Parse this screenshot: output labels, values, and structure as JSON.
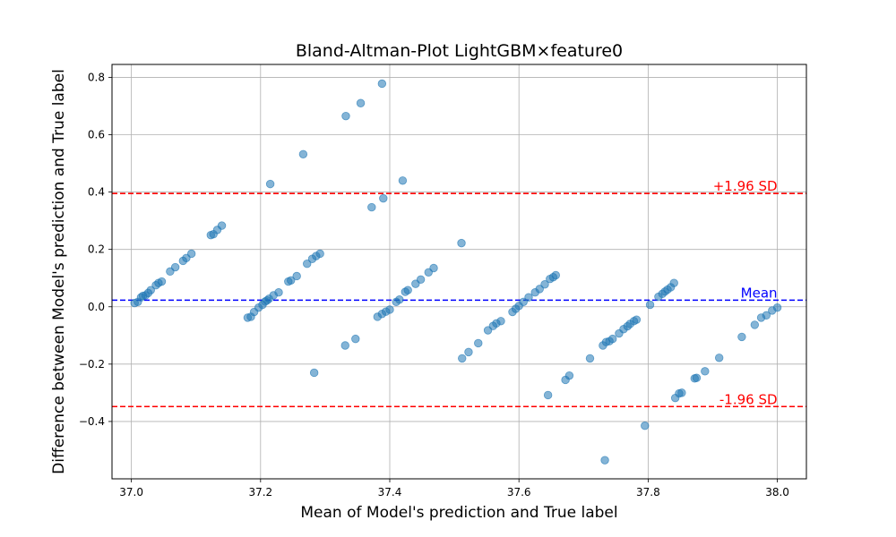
{
  "chart_data": {
    "type": "scatter",
    "title": "Bland-Altman-Plot LightGBM×feature0",
    "xlabel": "Mean of Model's prediction and True label",
    "ylabel": "Difference between Model's prediction and True label",
    "xlim": [
      36.97,
      38.045
    ],
    "ylim": [
      -0.6,
      0.845
    ],
    "xticks": [
      37.0,
      37.2,
      37.4,
      37.6,
      37.8,
      38.0
    ],
    "xtick_labels": [
      "37.0",
      "37.2",
      "37.4",
      "37.6",
      "37.8",
      "38.0"
    ],
    "yticks": [
      -0.4,
      -0.2,
      0.0,
      0.2,
      0.4,
      0.6,
      0.8
    ],
    "ytick_labels": [
      "−0.4",
      "−0.2",
      "0.0",
      "0.2",
      "0.4",
      "0.6",
      "0.8"
    ],
    "grid": true,
    "point_color": "#1f77b4",
    "reference_lines": [
      {
        "label": "+1.96 SD",
        "y": 0.395,
        "color": "#ff0000"
      },
      {
        "label": "Mean",
        "y": 0.023,
        "color": "#0000ff"
      },
      {
        "label": "-1.96 SD",
        "y": -0.348,
        "color": "#ff0000"
      }
    ],
    "points": [
      [
        37.005,
        0.013
      ],
      [
        37.01,
        0.017
      ],
      [
        37.015,
        0.033
      ],
      [
        37.018,
        0.038
      ],
      [
        37.022,
        0.04
      ],
      [
        37.026,
        0.048
      ],
      [
        37.03,
        0.058
      ],
      [
        37.038,
        0.075
      ],
      [
        37.042,
        0.083
      ],
      [
        37.047,
        0.088
      ],
      [
        37.06,
        0.123
      ],
      [
        37.068,
        0.138
      ],
      [
        37.08,
        0.16
      ],
      [
        37.085,
        0.17
      ],
      [
        37.093,
        0.185
      ],
      [
        37.123,
        0.25
      ],
      [
        37.127,
        0.253
      ],
      [
        37.133,
        0.268
      ],
      [
        37.14,
        0.283
      ],
      [
        37.18,
        -0.038
      ],
      [
        37.185,
        -0.035
      ],
      [
        37.19,
        -0.018
      ],
      [
        37.197,
        -0.003
      ],
      [
        37.203,
        0.007
      ],
      [
        37.207,
        0.018
      ],
      [
        37.21,
        0.022
      ],
      [
        37.213,
        0.028
      ],
      [
        37.22,
        0.04
      ],
      [
        37.228,
        0.05
      ],
      [
        37.243,
        0.088
      ],
      [
        37.247,
        0.092
      ],
      [
        37.256,
        0.107
      ],
      [
        37.272,
        0.15
      ],
      [
        37.28,
        0.167
      ],
      [
        37.286,
        0.177
      ],
      [
        37.292,
        0.185
      ],
      [
        37.215,
        0.428
      ],
      [
        37.266,
        0.532
      ],
      [
        37.283,
        -0.23
      ],
      [
        37.332,
        0.665
      ],
      [
        37.355,
        0.71
      ],
      [
        37.388,
        0.778
      ],
      [
        37.372,
        0.347
      ],
      [
        37.39,
        0.378
      ],
      [
        37.42,
        0.44
      ],
      [
        37.331,
        -0.135
      ],
      [
        37.347,
        -0.112
      ],
      [
        37.381,
        -0.035
      ],
      [
        37.388,
        -0.025
      ],
      [
        37.394,
        -0.017
      ],
      [
        37.4,
        -0.01
      ],
      [
        37.41,
        0.017
      ],
      [
        37.415,
        0.025
      ],
      [
        37.424,
        0.052
      ],
      [
        37.428,
        0.058
      ],
      [
        37.44,
        0.08
      ],
      [
        37.448,
        0.095
      ],
      [
        37.46,
        0.12
      ],
      [
        37.468,
        0.135
      ],
      [
        37.511,
        0.222
      ],
      [
        37.512,
        -0.18
      ],
      [
        37.522,
        -0.158
      ],
      [
        37.537,
        -0.127
      ],
      [
        37.552,
        -0.082
      ],
      [
        37.56,
        -0.067
      ],
      [
        37.565,
        -0.058
      ],
      [
        37.572,
        -0.05
      ],
      [
        37.59,
        -0.018
      ],
      [
        37.595,
        -0.007
      ],
      [
        37.6,
        0.003
      ],
      [
        37.607,
        0.017
      ],
      [
        37.615,
        0.033
      ],
      [
        37.625,
        0.05
      ],
      [
        37.632,
        0.062
      ],
      [
        37.64,
        0.078
      ],
      [
        37.648,
        0.097
      ],
      [
        37.653,
        0.103
      ],
      [
        37.657,
        0.11
      ],
      [
        37.645,
        -0.308
      ],
      [
        37.672,
        -0.255
      ],
      [
        37.678,
        -0.24
      ],
      [
        37.71,
        -0.18
      ],
      [
        37.73,
        -0.135
      ],
      [
        37.735,
        -0.123
      ],
      [
        37.74,
        -0.12
      ],
      [
        37.745,
        -0.112
      ],
      [
        37.755,
        -0.093
      ],
      [
        37.762,
        -0.078
      ],
      [
        37.768,
        -0.068
      ],
      [
        37.772,
        -0.06
      ],
      [
        37.778,
        -0.05
      ],
      [
        37.782,
        -0.045
      ],
      [
        37.803,
        0.007
      ],
      [
        37.816,
        0.035
      ],
      [
        37.822,
        0.045
      ],
      [
        37.826,
        0.053
      ],
      [
        37.83,
        0.06
      ],
      [
        37.835,
        0.068
      ],
      [
        37.84,
        0.083
      ],
      [
        37.733,
        -0.535
      ],
      [
        37.795,
        -0.415
      ],
      [
        37.842,
        -0.318
      ],
      [
        37.848,
        -0.302
      ],
      [
        37.852,
        -0.3
      ],
      [
        37.872,
        -0.25
      ],
      [
        37.875,
        -0.248
      ],
      [
        37.888,
        -0.225
      ],
      [
        37.91,
        -0.178
      ],
      [
        37.945,
        -0.105
      ],
      [
        37.965,
        -0.063
      ],
      [
        37.975,
        -0.038
      ],
      [
        37.983,
        -0.03
      ],
      [
        37.992,
        -0.013
      ],
      [
        38.0,
        -0.003
      ]
    ]
  }
}
